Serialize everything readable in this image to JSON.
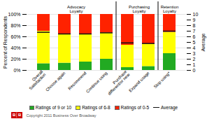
{
  "chart_data": {
    "type": "bar",
    "stacked": true,
    "categories": [
      "Overall\nSatisfaction",
      "Choose again",
      "Recommend",
      "Continue using",
      "Purchase\ndifferent/or new",
      "Expand usage",
      "Stop using*"
    ],
    "series": [
      {
        "name": "Ratings of 9 or 10",
        "color": "#22AA22",
        "values": [
          12,
          13,
          15,
          20,
          5,
          7,
          30
        ]
      },
      {
        "name": "Ratings of 6-8",
        "color": "#FFFF00",
        "values": [
          58,
          52,
          50,
          47,
          40,
          40,
          38
        ]
      },
      {
        "name": "Ratings of 0-5",
        "color": "#FF2200",
        "values": [
          30,
          35,
          35,
          33,
          55,
          53,
          32
        ]
      },
      {
        "name": "Average",
        "type": "tick",
        "axis": "y2",
        "color": "#111111",
        "values": [
          6.8,
          6.5,
          6.5,
          6.7,
          4.9,
          4.8,
          7.0
        ]
      }
    ],
    "ylabel": "Percent of Respondents",
    "y2label": "Average",
    "ylim": [
      0,
      100
    ],
    "yticks": [
      {
        "value": 0,
        "label": "0%"
      },
      {
        "value": 20,
        "label": "20%"
      },
      {
        "value": 40,
        "label": "40%"
      },
      {
        "value": 60,
        "label": "60%"
      },
      {
        "value": 80,
        "label": "80%"
      },
      {
        "value": 100,
        "label": "100%"
      }
    ],
    "y2lim": [
      0,
      10
    ],
    "y2ticks": [
      0,
      1,
      2,
      3,
      4,
      5,
      6,
      7,
      8,
      9,
      10
    ],
    "grid": true,
    "legend": "bottom",
    "groups": [
      {
        "name": "Advocacy\nLoyalty",
        "categories": [
          "Overall\nSatisfaction",
          "Choose again",
          "Recommend",
          "Continue using"
        ]
      },
      {
        "name": "Purchasing\nLoyalty",
        "categories": [
          "Purchase\ndifferent/or new",
          "Expand usage"
        ]
      },
      {
        "name": "Retention\nLoyalty",
        "categories": [
          "Stop using*"
        ]
      }
    ],
    "caption": "Copyright 2011 Business Over Broadway",
    "logo": {
      "text": "B│B",
      "color": "#CC0000"
    }
  }
}
